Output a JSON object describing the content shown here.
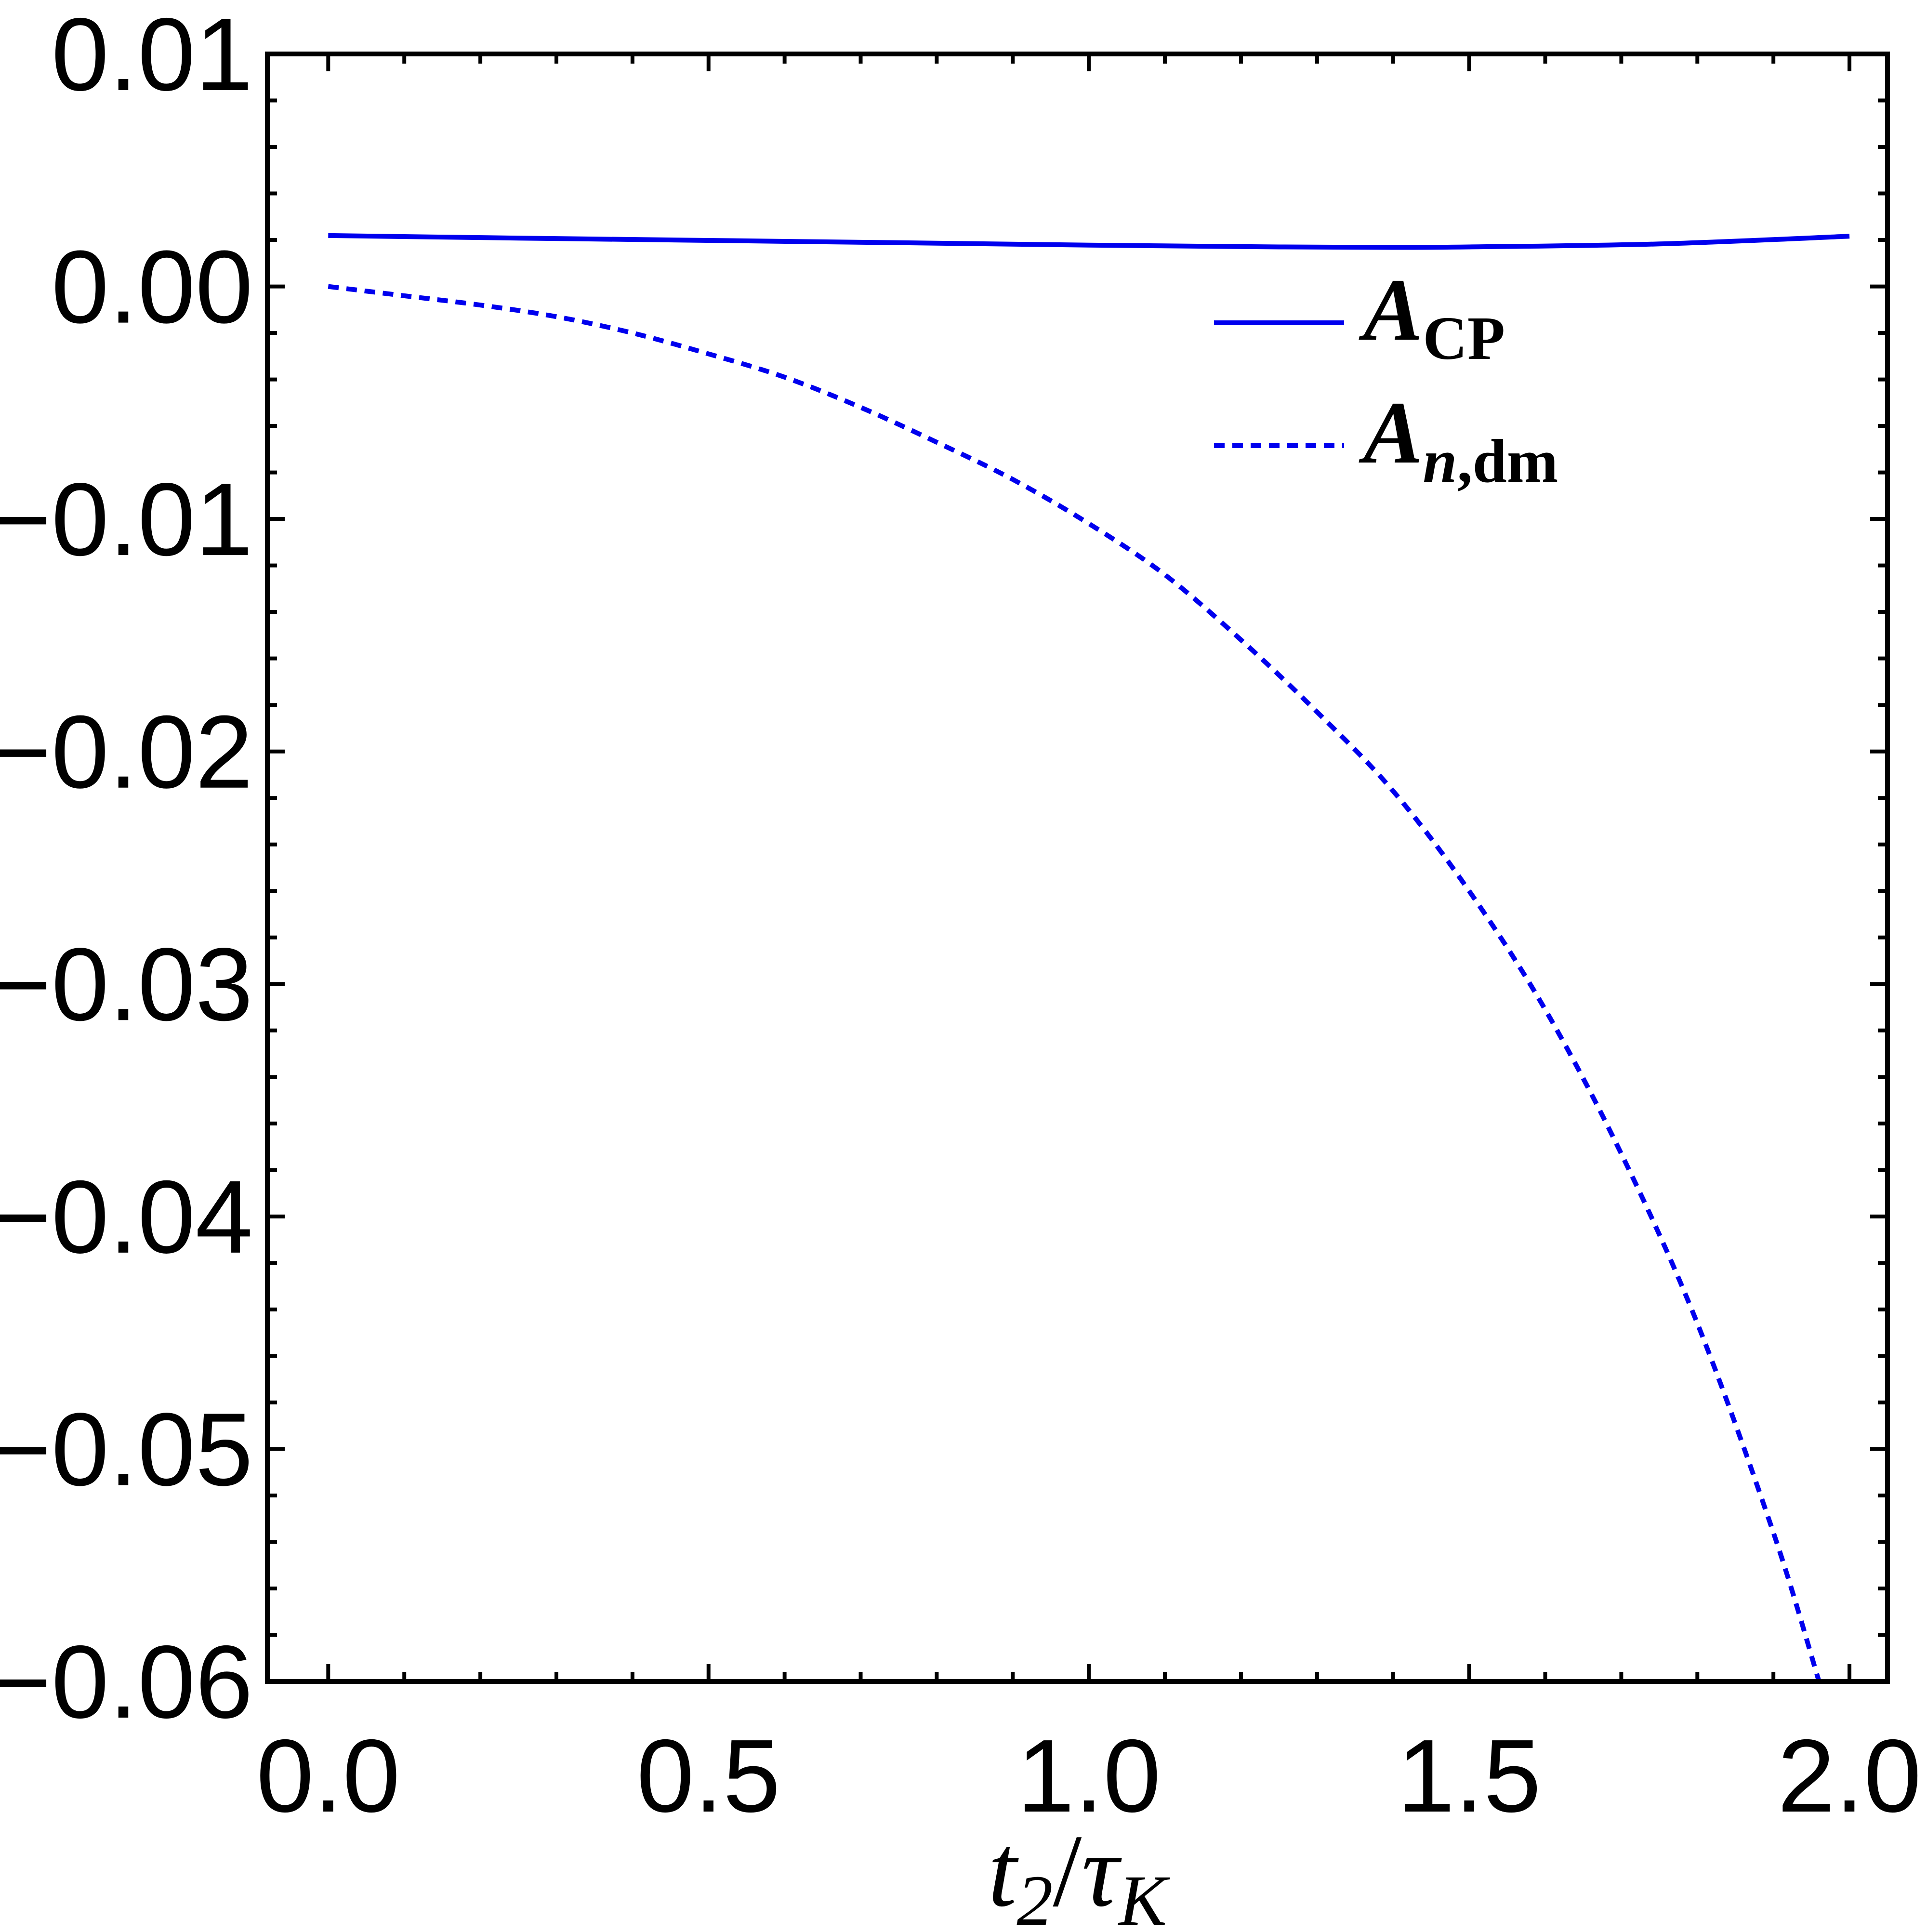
{
  "chart_data": {
    "type": "line",
    "xlabel": {
      "main": "t",
      "sub": "2",
      "sep": "/",
      "main2": "τ",
      "sub2": "K"
    },
    "xlim": [
      -0.08,
      2.05
    ],
    "ylim": [
      -0.06,
      0.01
    ],
    "x_ticks": [
      0.0,
      0.5,
      1.0,
      1.5,
      2.0
    ],
    "x_tick_labels": [
      "0.0",
      "0.5",
      "1.0",
      "1.5",
      "2.0"
    ],
    "y_ticks": [
      0.01,
      0.0,
      -0.01,
      -0.02,
      -0.03,
      -0.04,
      -0.05,
      -0.06
    ],
    "y_tick_labels": [
      "0.01",
      "0.00",
      "−0.01",
      "−0.02",
      "−0.03",
      "−0.04",
      "−0.05",
      "−0.06"
    ],
    "grid": false,
    "legend_position": "top-right",
    "series": [
      {
        "name": {
          "main": "A",
          "sub": "CP"
        },
        "style": "solid",
        "color": "#0000ee",
        "x": [
          0.0,
          0.25,
          0.5,
          0.75,
          1.0,
          1.25,
          1.4,
          1.5,
          1.75,
          2.0
        ],
        "y": [
          0.00219,
          0.00208,
          0.00198,
          0.00188,
          0.00178,
          0.0017,
          0.00168,
          0.0017,
          0.00183,
          0.00216
        ]
      },
      {
        "name": {
          "main": "A",
          "sub_italic": "n",
          "sub": ",dm"
        },
        "style": "dashed",
        "color": "#0000ee",
        "x": [
          0.0,
          0.1,
          0.2,
          0.3,
          0.4,
          0.5,
          0.6,
          0.7,
          0.8,
          0.9,
          1.0,
          1.1,
          1.2,
          1.3,
          1.4,
          1.5,
          1.6,
          1.7,
          1.8,
          1.9,
          1.96
        ],
        "y": [
          0.0,
          -0.0004,
          -0.0008,
          -0.0013,
          -0.002,
          -0.0029,
          -0.0039,
          -0.0052,
          -0.0067,
          -0.0083,
          -0.0102,
          -0.0124,
          -0.0152,
          -0.0183,
          -0.0217,
          -0.026,
          -0.0311,
          -0.0373,
          -0.0446,
          -0.0536,
          -0.06
        ]
      }
    ]
  }
}
